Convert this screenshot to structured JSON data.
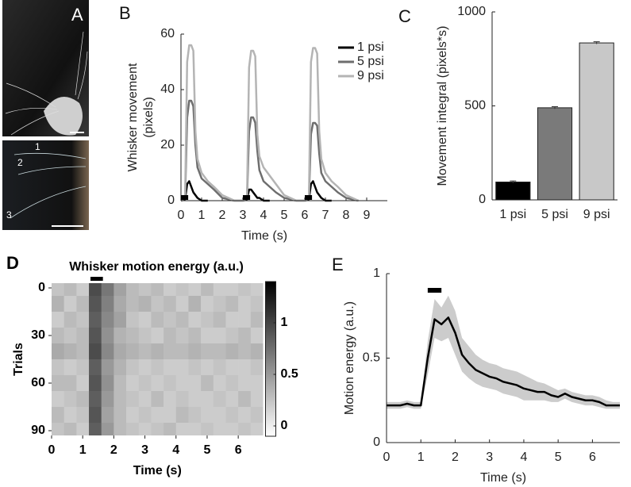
{
  "photos": {
    "label": "A",
    "whisker_labels": [
      "1",
      "2",
      "3"
    ]
  },
  "chart_data": [
    {
      "type": "line",
      "panel": "B",
      "xlabel": "Time (s)",
      "ylabel": [
        "Whisker movement",
        "(pixels)"
      ],
      "x": [
        0,
        0.2,
        0.3,
        0.4,
        0.5,
        0.6,
        0.7,
        0.8,
        1.0,
        1.3,
        1.6,
        2.0,
        2.6,
        3,
        3.2,
        3.3,
        3.4,
        3.5,
        3.6,
        3.7,
        3.8,
        4.0,
        4.3,
        4.6,
        5.0,
        5.6,
        6,
        6.2,
        6.3,
        6.4,
        6.5,
        6.6,
        6.7,
        6.8,
        7.0,
        7.3,
        7.6,
        8.0,
        8.6
      ],
      "series": [
        {
          "name": "1 psi",
          "color": "#000000",
          "values": [
            0,
            0.5,
            6,
            7,
            5,
            3,
            2,
            1,
            0,
            0,
            null,
            null,
            null,
            0,
            0.5,
            4,
            4,
            3,
            2,
            1,
            1,
            0,
            0,
            null,
            null,
            null,
            0,
            0.5,
            6,
            7,
            5,
            3,
            2,
            1,
            0,
            0,
            null,
            null,
            null
          ]
        },
        {
          "name": "5 psi",
          "color": "#6e6e6e",
          "values": [
            0,
            1,
            30,
            36,
            36,
            34,
            20,
            12,
            8,
            6,
            4,
            1,
            0,
            0,
            1,
            25,
            30,
            30,
            28,
            18,
            11,
            7,
            5,
            3,
            1,
            0,
            0,
            1,
            24,
            28,
            28,
            27,
            17,
            10,
            7,
            5,
            3,
            1,
            0
          ]
        },
        {
          "name": "9 psi",
          "color": "#b4b4b4",
          "values": [
            0,
            1,
            50,
            56,
            56,
            54,
            25,
            15,
            10,
            7,
            5,
            2,
            0,
            0,
            1,
            48,
            54,
            54,
            52,
            24,
            16,
            12,
            9,
            6,
            2,
            0,
            0,
            1,
            50,
            55,
            55,
            53,
            25,
            15,
            10,
            7,
            5,
            2,
            0
          ]
        }
      ],
      "xlim": [
        0,
        10
      ],
      "ylim": [
        0,
        60
      ],
      "xticks": [
        0,
        1,
        2,
        3,
        4,
        5,
        6,
        7,
        8,
        9
      ],
      "yticks": [
        0,
        20,
        40,
        60
      ],
      "stimuli": [
        [
          0,
          0.35
        ],
        [
          3,
          3.35
        ],
        [
          6,
          6.35
        ]
      ],
      "stimulus_color": "#000000",
      "legend": "upper right"
    },
    {
      "type": "bar",
      "panel": "C",
      "ylabel": "Movement integral (pixels*s)",
      "categories": [
        "1 psi",
        "5 psi",
        "9 psi"
      ],
      "values": [
        95,
        490,
        835
      ],
      "errors": [
        6,
        6,
        6
      ],
      "colors": [
        "#000000",
        "#7a7a7a",
        "#c8c8c8"
      ],
      "ylim": [
        0,
        1000
      ],
      "yticks": [
        0,
        500,
        1000
      ]
    },
    {
      "type": "heatmap",
      "panel": "D",
      "title": "Whisker motion energy (a.u.)",
      "xlabel": "Time (s)",
      "ylabel": "Trials",
      "x": [
        0,
        0.4,
        0.8,
        1.2,
        1.6,
        2.0,
        2.4,
        2.8,
        3.2,
        3.6,
        4.0,
        4.4,
        4.8,
        5.2,
        5.6,
        6.0,
        6.4
      ],
      "y": [
        0,
        10,
        20,
        30,
        40,
        50,
        60,
        70,
        80,
        90
      ],
      "values": [
        [
          0.25,
          0.3,
          0.2,
          0.95,
          0.7,
          0.45,
          0.3,
          0.25,
          0.3,
          0.2,
          0.25,
          0.2,
          0.3,
          0.2,
          0.2,
          0.25,
          0.2
        ],
        [
          0.35,
          0.2,
          0.3,
          0.9,
          0.65,
          0.4,
          0.3,
          0.35,
          0.25,
          0.3,
          0.2,
          0.35,
          0.2,
          0.25,
          0.3,
          0.2,
          0.25
        ],
        [
          0.2,
          0.3,
          0.25,
          0.85,
          0.6,
          0.45,
          0.25,
          0.2,
          0.3,
          0.25,
          0.3,
          0.2,
          0.25,
          0.3,
          0.2,
          0.2,
          0.3
        ],
        [
          0.3,
          0.25,
          0.3,
          0.9,
          0.55,
          0.35,
          0.3,
          0.25,
          0.2,
          0.3,
          0.25,
          0.3,
          0.2,
          0.2,
          0.25,
          0.3,
          0.2
        ],
        [
          0.4,
          0.35,
          0.3,
          0.95,
          0.6,
          0.4,
          0.35,
          0.3,
          0.35,
          0.3,
          0.3,
          0.35,
          0.3,
          0.3,
          0.35,
          0.3,
          0.35
        ],
        [
          0.25,
          0.2,
          0.25,
          0.85,
          0.5,
          0.35,
          0.25,
          0.2,
          0.25,
          0.2,
          0.2,
          0.25,
          0.2,
          0.25,
          0.2,
          0.2,
          0.25
        ],
        [
          0.3,
          0.3,
          0.2,
          0.9,
          0.55,
          0.3,
          0.2,
          0.25,
          0.2,
          0.25,
          0.2,
          0.2,
          0.3,
          0.2,
          0.25,
          0.2,
          0.2
        ],
        [
          0.2,
          0.25,
          0.3,
          0.85,
          0.5,
          0.3,
          0.25,
          0.2,
          0.3,
          0.2,
          0.25,
          0.2,
          0.2,
          0.25,
          0.2,
          0.3,
          0.2
        ],
        [
          0.3,
          0.2,
          0.25,
          0.9,
          0.45,
          0.3,
          0.2,
          0.25,
          0.2,
          0.2,
          0.3,
          0.25,
          0.2,
          0.2,
          0.25,
          0.2,
          0.25
        ],
        [
          0.25,
          0.3,
          0.2,
          0.85,
          0.5,
          0.3,
          0.25,
          0.2,
          0.25,
          0.3,
          0.2,
          0.2,
          0.25,
          0.2,
          0.2,
          0.25,
          0.2
        ]
      ],
      "xlim": [
        0,
        6.8
      ],
      "ylim": [
        -3,
        93
      ],
      "xticks": [
        0,
        1,
        2,
        3,
        4,
        5,
        6
      ],
      "yticks": [
        0,
        30,
        60,
        90
      ],
      "clim": [
        -0.1,
        1.4
      ],
      "cticks": [
        0,
        0.5,
        1
      ],
      "stimulus": [
        1.25,
        1.65
      ],
      "stimulus_color": "#000000"
    },
    {
      "type": "line",
      "panel": "E",
      "xlabel": "Time (s)",
      "ylabel": "Motion energy (a.u.)",
      "x": [
        0,
        0.2,
        0.4,
        0.6,
        0.8,
        1.0,
        1.2,
        1.4,
        1.6,
        1.8,
        2.0,
        2.2,
        2.4,
        2.6,
        2.8,
        3.0,
        3.2,
        3.4,
        3.6,
        3.8,
        4.0,
        4.2,
        4.4,
        4.6,
        4.8,
        5.0,
        5.2,
        5.4,
        5.6,
        5.8,
        6.0,
        6.2,
        6.4,
        6.6,
        6.8
      ],
      "series": [
        {
          "color": "#000000",
          "band_color": "#cccccc",
          "values": [
            0.22,
            0.22,
            0.22,
            0.23,
            0.22,
            0.22,
            0.5,
            0.73,
            0.7,
            0.74,
            0.65,
            0.52,
            0.47,
            0.43,
            0.41,
            0.39,
            0.38,
            0.36,
            0.35,
            0.34,
            0.32,
            0.31,
            0.3,
            0.3,
            0.28,
            0.27,
            0.29,
            0.27,
            0.26,
            0.25,
            0.25,
            0.24,
            0.22,
            0.22,
            0.22
          ],
          "upper": [
            0.24,
            0.24,
            0.24,
            0.25,
            0.24,
            0.24,
            0.6,
            0.85,
            0.8,
            0.87,
            0.78,
            0.62,
            0.57,
            0.52,
            0.49,
            0.47,
            0.46,
            0.44,
            0.43,
            0.42,
            0.4,
            0.38,
            0.36,
            0.35,
            0.33,
            0.31,
            0.32,
            0.3,
            0.29,
            0.28,
            0.28,
            0.27,
            0.25,
            0.24,
            0.24
          ],
          "lower": [
            0.2,
            0.2,
            0.2,
            0.21,
            0.2,
            0.2,
            0.4,
            0.62,
            0.6,
            0.62,
            0.52,
            0.42,
            0.38,
            0.35,
            0.33,
            0.32,
            0.31,
            0.29,
            0.28,
            0.27,
            0.25,
            0.25,
            0.25,
            0.25,
            0.24,
            0.24,
            0.26,
            0.24,
            0.23,
            0.22,
            0.22,
            0.21,
            0.2,
            0.2,
            0.2
          ]
        }
      ],
      "xlim": [
        0,
        6.8
      ],
      "ylim": [
        0,
        1
      ],
      "xticks": [
        0,
        1,
        2,
        3,
        4,
        5,
        6
      ],
      "yticks": [
        0,
        0.5,
        1
      ],
      "stimuli": [
        [
          1.2,
          1.6
        ]
      ],
      "stimulus_color": "#000000"
    }
  ]
}
